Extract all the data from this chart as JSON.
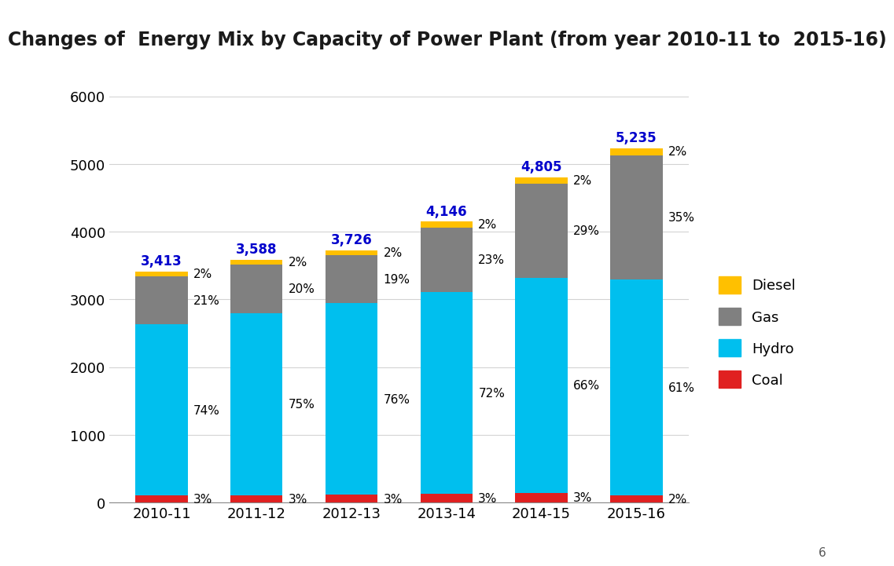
{
  "years": [
    "2010-11",
    "2011-12",
    "2012-13",
    "2013-14",
    "2014-15",
    "2015-16"
  ],
  "totals": [
    3413,
    3588,
    3726,
    4146,
    4805,
    5235
  ],
  "coal_pct": [
    3,
    3,
    3,
    3,
    3,
    2
  ],
  "hydro_pct": [
    74,
    75,
    76,
    72,
    66,
    61
  ],
  "gas_pct": [
    21,
    20,
    19,
    23,
    29,
    35
  ],
  "diesel_pct": [
    2,
    2,
    2,
    2,
    2,
    2
  ],
  "coal_color": "#e02020",
  "hydro_color": "#00bfee",
  "gas_color": "#808080",
  "diesel_color": "#ffc000",
  "title": "Changes of  Energy Mix by Capacity of Power Plant (from year 2010-11 to  2015-16)",
  "title_bg_color": "#90EEC8",
  "title_text_color": "#1a1a1a",
  "ylim": [
    0,
    6000
  ],
  "yticks": [
    0,
    1000,
    2000,
    3000,
    4000,
    5000,
    6000
  ],
  "total_label_color": "#0000cc",
  "bar_width": 0.55,
  "label_fontsize": 11,
  "tick_fontsize": 13,
  "title_fontsize": 17
}
